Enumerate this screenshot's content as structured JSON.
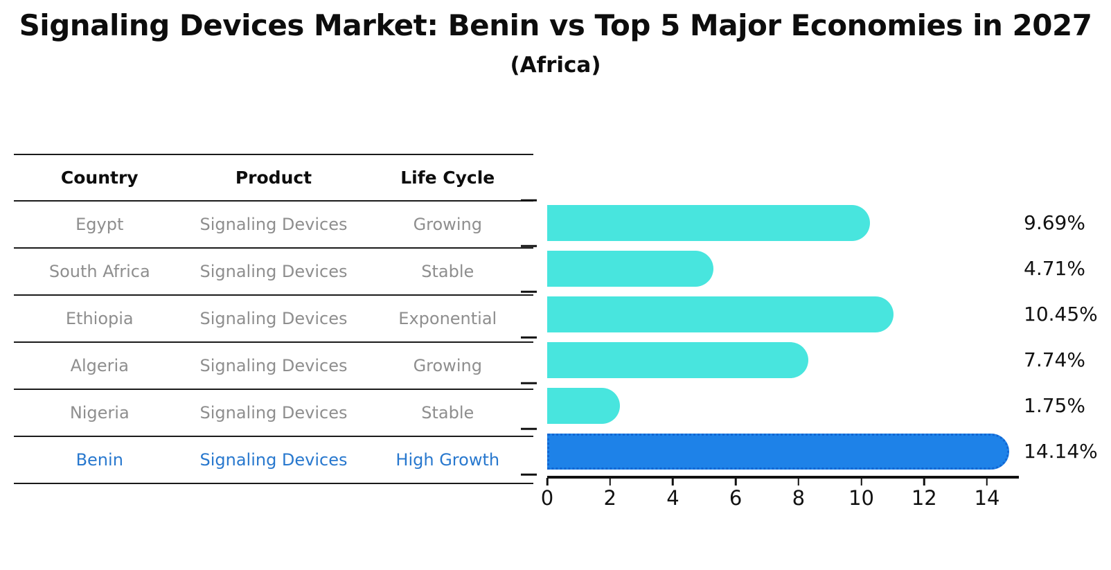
{
  "title": "Signaling Devices Market: Benin vs Top 5 Major Economies in 2027",
  "subtitle": "(Africa)",
  "table": {
    "headers": [
      "Country",
      "Product",
      "Life Cycle"
    ],
    "rows": [
      {
        "country": "Egypt",
        "product": "Signaling Devices",
        "life_cycle": "Growing",
        "highlight": false
      },
      {
        "country": "South Africa",
        "product": "Signaling Devices",
        "life_cycle": "Stable",
        "highlight": false
      },
      {
        "country": "Ethiopia",
        "product": "Signaling Devices",
        "life_cycle": "Exponential",
        "highlight": false
      },
      {
        "country": "Algeria",
        "product": "Signaling Devices",
        "life_cycle": "Growing",
        "highlight": false
      },
      {
        "country": "Nigeria",
        "product": "Signaling Devices",
        "life_cycle": "Stable",
        "highlight": false
      },
      {
        "country": "Benin",
        "product": "Signaling Devices",
        "life_cycle": "High Growth",
        "highlight": true
      }
    ]
  },
  "chart_data": {
    "type": "bar",
    "orientation": "horizontal",
    "title": "Signaling Devices Market: Benin vs Top 5 Major Economies in 2027",
    "subtitle": "(Africa)",
    "categories": [
      "Egypt",
      "South Africa",
      "Ethiopia",
      "Algeria",
      "Nigeria",
      "Benin"
    ],
    "values": [
      9.69,
      4.71,
      10.45,
      7.74,
      1.75,
      14.14
    ],
    "value_labels": [
      "9.69%",
      "4.71%",
      "10.45%",
      "7.74%",
      "1.75%",
      "14.14%"
    ],
    "unit": "%",
    "x_ticks": [
      0,
      2,
      4,
      6,
      8,
      10,
      12,
      14
    ],
    "xlim": [
      0,
      15
    ],
    "grid": false,
    "legend": "none",
    "bar_color": "#48e5de",
    "highlight_color": "#1e82e8",
    "highlight_border_color": "#1266d2",
    "highlight_index": 5,
    "highlight_category": "Benin"
  },
  "colors": {
    "text_primary": "#0d0d0d",
    "text_muted": "#8e8e8e",
    "highlight_text": "#2878ce",
    "axis": "#111111"
  }
}
